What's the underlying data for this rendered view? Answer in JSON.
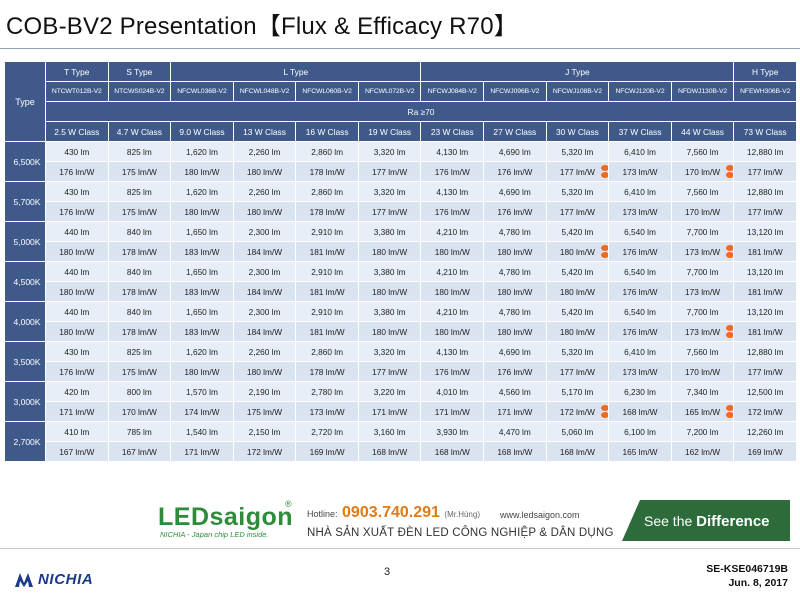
{
  "page": {
    "title": "COB-BV2 Presentation【Flux & Efficacy R70】",
    "page_number": "3",
    "doc_id": "SE-KSE046719B",
    "doc_date": "Jun. 8, 2017"
  },
  "table": {
    "type_label": "Type",
    "type_groups": [
      "T Type",
      "S Type",
      "L Type",
      "J Type",
      "H Type"
    ],
    "part_numbers": [
      "NTCWT012B-V2",
      "NTCWS024B-V2",
      "NFCWL036B-V2",
      "NFCWL048B-V2",
      "NFCWL060B-V2",
      "NFCWL072B-V2",
      "NFCWJ084B-V2",
      "NFCWJ096B-V2",
      "NFCWJ108B-V2",
      "NFCWJ120B-V2",
      "NFDWJ130B-V2",
      "NFEWH306B-V2"
    ],
    "ra_label": "Ra ≥70",
    "wattage_classes": [
      "2.5 W Class",
      "4.7 W Class",
      "9.0 W Class",
      "13 W Class",
      "16 W Class",
      "19 W Class",
      "23 W Class",
      "27 W Class",
      "30 W Class",
      "37 W Class",
      "44 W Class",
      "73 W Class"
    ],
    "rows": [
      {
        "cct": "6,500K",
        "flux": [
          "430 lm",
          "825 lm",
          "1,620 lm",
          "2,260 lm",
          "2,860 lm",
          "3,320 lm",
          "4,130 lm",
          "4,690 lm",
          "5,320 lm",
          "6,410 lm",
          "7,560 lm",
          "12,880 lm"
        ],
        "efficacy": [
          "176 lm/W",
          "175 lm/W",
          "180 lm/W",
          "180 lm/W",
          "178 lm/W",
          "177 lm/W",
          "176 lm/W",
          "176 lm/W",
          "177 lm/W",
          "173 lm/W",
          "170 lm/W",
          "177 lm/W"
        ]
      },
      {
        "cct": "5,700K",
        "flux": [
          "430 lm",
          "825 lm",
          "1,620 lm",
          "2,260 lm",
          "2,860 lm",
          "3,320 lm",
          "4,130 lm",
          "4,690 lm",
          "5,320 lm",
          "6,410 lm",
          "7,560 lm",
          "12,880 lm"
        ],
        "efficacy": [
          "176 lm/W",
          "175 lm/W",
          "180 lm/W",
          "180 lm/W",
          "178 lm/W",
          "177 lm/W",
          "176 lm/W",
          "176 lm/W",
          "177 lm/W",
          "173 lm/W",
          "170 lm/W",
          "177 lm/W"
        ]
      },
      {
        "cct": "5,000K",
        "flux": [
          "440 lm",
          "840 lm",
          "1,650 lm",
          "2,300 lm",
          "2,910 lm",
          "3,380 lm",
          "4,210 lm",
          "4,780 lm",
          "5,420 lm",
          "6,540 lm",
          "7,700 lm",
          "13,120 lm"
        ],
        "efficacy": [
          "180 lm/W",
          "178 lm/W",
          "183 lm/W",
          "184 lm/W",
          "181 lm/W",
          "180 lm/W",
          "180 lm/W",
          "180 lm/W",
          "180 lm/W",
          "176 lm/W",
          "173 lm/W",
          "181 lm/W"
        ]
      },
      {
        "cct": "4,500K",
        "flux": [
          "440 lm",
          "840 lm",
          "1,650 lm",
          "2,300 lm",
          "2,910 lm",
          "3,380 lm",
          "4,210 lm",
          "4,780 lm",
          "5,420 lm",
          "6,540 lm",
          "7,700 lm",
          "13,120 lm"
        ],
        "efficacy": [
          "180 lm/W",
          "178 lm/W",
          "183 lm/W",
          "184 lm/W",
          "181 lm/W",
          "180 lm/W",
          "180 lm/W",
          "180 lm/W",
          "180 lm/W",
          "176 lm/W",
          "173 lm/W",
          "181 lm/W"
        ]
      },
      {
        "cct": "4,000K",
        "flux": [
          "440 lm",
          "840 lm",
          "1,650 lm",
          "2,300 lm",
          "2,910 lm",
          "3,380 lm",
          "4,210 lm",
          "4,780 lm",
          "5,420 lm",
          "6,540 lm",
          "7,700 lm",
          "13,120 lm"
        ],
        "efficacy": [
          "180 lm/W",
          "178 lm/W",
          "183 lm/W",
          "184 lm/W",
          "181 lm/W",
          "180 lm/W",
          "180 lm/W",
          "180 lm/W",
          "180 lm/W",
          "176 lm/W",
          "173 lm/W",
          "181 lm/W"
        ]
      },
      {
        "cct": "3,500K",
        "flux": [
          "430 lm",
          "825 lm",
          "1,620 lm",
          "2,260 lm",
          "2,860 lm",
          "3,320 lm",
          "4,130 lm",
          "4,690 lm",
          "5,320 lm",
          "6,410 lm",
          "7,560 lm",
          "12,880 lm"
        ],
        "efficacy": [
          "176 lm/W",
          "175 lm/W",
          "180 lm/W",
          "180 lm/W",
          "178 lm/W",
          "177 lm/W",
          "176 lm/W",
          "176 lm/W",
          "177 lm/W",
          "173 lm/W",
          "170 lm/W",
          "177 lm/W"
        ]
      },
      {
        "cct": "3,000K",
        "flux": [
          "420 lm",
          "800 lm",
          "1,570 lm",
          "2,190 lm",
          "2,780 lm",
          "3,220 lm",
          "4,010 lm",
          "4,560 lm",
          "5,170 lm",
          "6,230 lm",
          "7,340 lm",
          "12,500 lm"
        ],
        "efficacy": [
          "171 lm/W",
          "170 lm/W",
          "174 lm/W",
          "175 lm/W",
          "173 lm/W",
          "171 lm/W",
          "171 lm/W",
          "171 lm/W",
          "172 lm/W",
          "168 lm/W",
          "165 lm/W",
          "172 lm/W"
        ]
      },
      {
        "cct": "2,700K",
        "flux": [
          "410 lm",
          "785 lm",
          "1,540 lm",
          "2,150 lm",
          "2,720 lm",
          "3,160 lm",
          "3,930 lm",
          "4,470 lm",
          "5,060 lm",
          "6,100 lm",
          "7,200 lm",
          "12,260 lm"
        ],
        "efficacy": [
          "167 lm/W",
          "167 lm/W",
          "171 lm/W",
          "172 lm/W",
          "169 lm/W",
          "168 lm/W",
          "168 lm/W",
          "168 lm/W",
          "168 lm/W",
          "165 lm/W",
          "162 lm/W",
          "169 lm/W"
        ]
      }
    ],
    "markers": [
      {
        "row": 0,
        "col": 8
      },
      {
        "row": 0,
        "col": 10
      },
      {
        "row": 2,
        "col": 8
      },
      {
        "row": 2,
        "col": 10
      },
      {
        "row": 4,
        "col": 10
      },
      {
        "row": 6,
        "col": 8
      },
      {
        "row": 6,
        "col": 10
      }
    ],
    "marker_color": "#ee6a1c",
    "header_color": "#3f5a8a"
  },
  "footer": {
    "brand": "LEDsaigon",
    "brand_reg": "®",
    "brand_sub": "NICHIA - Japan chip LED inside.",
    "hotline_label": "Hotline:",
    "hotline_number": "0903.740.291",
    "hotline_contact": "(Mr.Hùng)",
    "website": "www.ledsaigon.com",
    "slogan": "NHÀ SẢN XUẤT ĐÈN LED CÔNG NGHIỆP & DÂN DỤNG",
    "badge_prefix": "See the",
    "badge_bold": "Difference",
    "company": "NICHIA",
    "brand_color": "#2e8b3a",
    "hotline_color": "#e07b14"
  }
}
